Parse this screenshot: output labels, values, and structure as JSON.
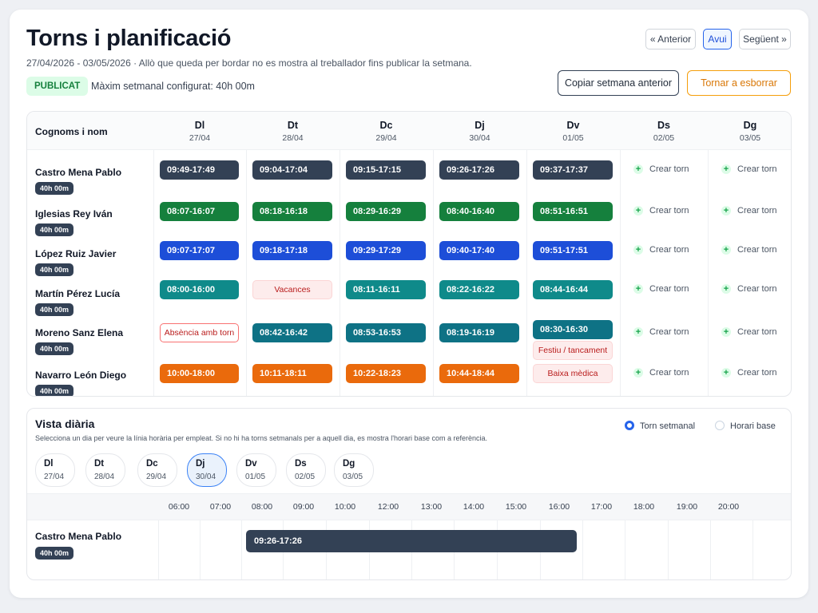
{
  "header": {
    "title": "Torns i planificació",
    "subtitle": "27/04/2026 - 03/05/2026 · Allò que queda per bordar no es mostra al treballador fins publicar la setmana.",
    "status_badge": "PUBLICAT",
    "max_weekly": "Màxim setmanal configurat: 40h 00m"
  },
  "nav": {
    "prev": "« Anterior",
    "today": "Avui",
    "next": "Següent »"
  },
  "actions": {
    "copy_week": "Copiar setmana anterior",
    "reset": "Tornar a esborrar"
  },
  "week": {
    "name_header": "Cognoms i nom",
    "days": [
      {
        "abbr": "Dl",
        "date": "27/04"
      },
      {
        "abbr": "Dt",
        "date": "28/04"
      },
      {
        "abbr": "Dc",
        "date": "29/04"
      },
      {
        "abbr": "Dj",
        "date": "30/04"
      },
      {
        "abbr": "Dv",
        "date": "01/05"
      },
      {
        "abbr": "Ds",
        "date": "02/05"
      },
      {
        "abbr": "Dg",
        "date": "03/05"
      }
    ],
    "create_label": "Crear torn",
    "employees": [
      {
        "name": "Castro Mena Pablo",
        "hours": "40h 00m",
        "shifts": [
          "09:49-17:49",
          "09:04-17:04",
          "09:15-17:15",
          "09:26-17:26",
          "09:37-17:37"
        ]
      },
      {
        "name": "Iglesias Rey Iván",
        "hours": "40h 00m",
        "shifts": [
          "08:07-16:07",
          "08:18-16:18",
          "08:29-16:29",
          "08:40-16:40",
          "08:51-16:51"
        ]
      },
      {
        "name": "López Ruiz Javier",
        "hours": "40h 00m",
        "shifts": [
          "09:07-17:07",
          "09:18-17:18",
          "09:29-17:29",
          "09:40-17:40",
          "09:51-17:51"
        ]
      },
      {
        "name": "Martín Pérez Lucía",
        "hours": "40h 00m",
        "shifts": [
          "08:00-16:00",
          "Vacances",
          "08:11-16:11",
          "08:22-16:22",
          "08:44-16:44"
        ]
      },
      {
        "name": "Moreno Sanz Elena",
        "hours": "40h 00m",
        "shifts": [
          "Absència amb torn",
          "08:42-16:42",
          "08:53-16:53",
          "08:19-16:19",
          "08:30-16:30"
        ],
        "extra_tag": "Festiu / tancament"
      },
      {
        "name": "Navarro León Diego",
        "hours": "40h 00m",
        "shifts": [
          "10:00-18:00",
          "10:11-18:11",
          "10:22-18:23",
          "10:44-18:44",
          "Baixa mèdica"
        ]
      }
    ]
  },
  "daily": {
    "title": "Vista diària",
    "subtitle": "Selecciona un dia per veure la línia horària per empleat. Si no hi ha torns setmanals per a aquell dia, es mostra l'horari base com a referència.",
    "radio_week": "Torn setmanal",
    "radio_base": "Horari base",
    "selected_day": "Dj",
    "day_chips": [
      {
        "abbr": "Dl",
        "date": "27/04"
      },
      {
        "abbr": "Dt",
        "date": "28/04"
      },
      {
        "abbr": "Dc",
        "date": "29/04"
      },
      {
        "abbr": "Dj",
        "date": "30/04"
      },
      {
        "abbr": "Dv",
        "date": "01/05"
      },
      {
        "abbr": "Ds",
        "date": "02/05"
      },
      {
        "abbr": "Dg",
        "date": "03/05"
      }
    ],
    "hours": [
      "06:00",
      "07:00",
      "08:00",
      "09:00",
      "10:00",
      "12:00",
      "13:00",
      "14:00",
      "15:00",
      "16:00",
      "17:00",
      "18:00",
      "19:00",
      "20:00"
    ],
    "row": {
      "name": "Castro Mena Pablo",
      "hours": "40h 00m",
      "shift": "09:26-17:26"
    }
  },
  "colors": {
    "navy": "#334155",
    "green": "#15803d",
    "blue": "#1d4ed8",
    "teal": "#0f8a8a",
    "dark_teal": "#0e7285",
    "orange": "#ea6a0c",
    "absence_red": "#b91c1c",
    "accent": "#2563eb"
  }
}
